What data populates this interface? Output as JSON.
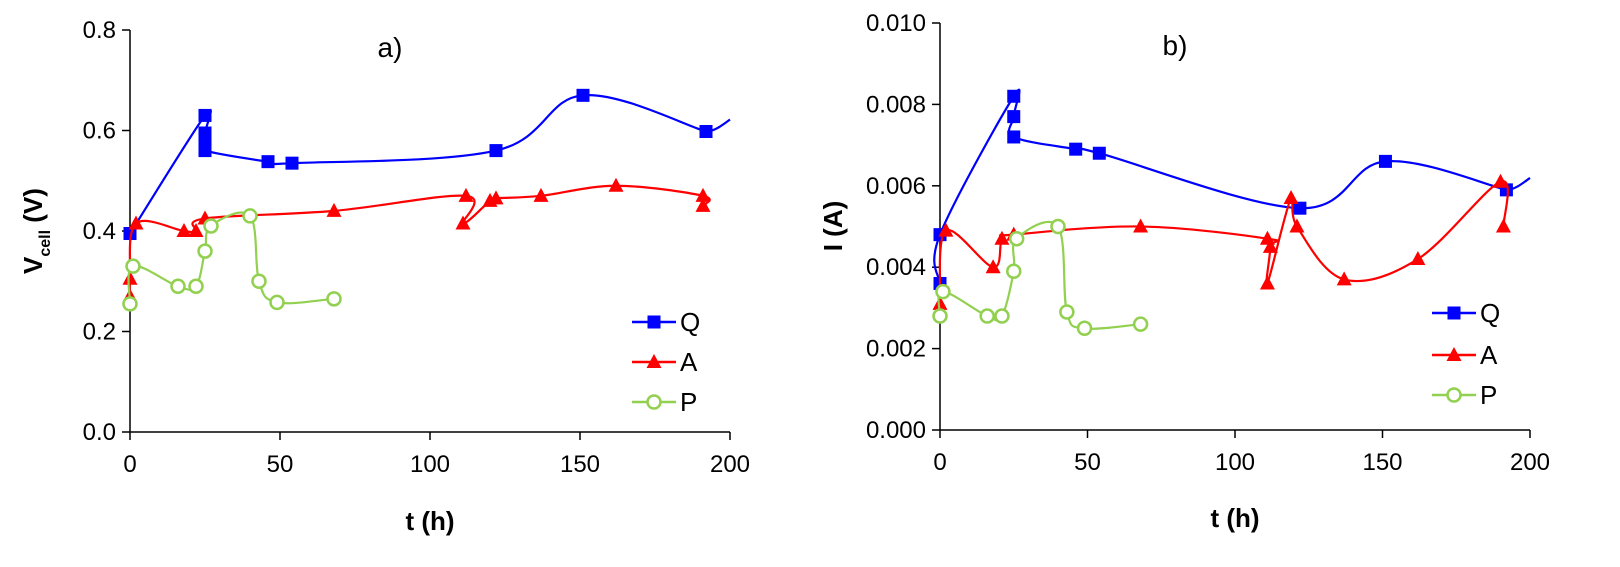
{
  "chart_data": [
    {
      "type": "line",
      "title": "a)",
      "xlabel": "t (h)",
      "ylabel": "V",
      "ylabel_sub": "cell",
      "ylabel_unit": " (V)",
      "xlim": [
        0,
        200
      ],
      "ylim": [
        0,
        0.8
      ],
      "xticks": [
        0,
        50,
        100,
        150,
        200
      ],
      "xtick_labels": [
        "0",
        "50",
        "100",
        "150",
        "200"
      ],
      "yticks": [
        0,
        0.2,
        0.4,
        0.6,
        0.8
      ],
      "ytick_labels": [
        "0.0",
        "0.2",
        "0.4",
        "0.6",
        "0.8"
      ],
      "legend_position": "bottom-right",
      "series": [
        {
          "name": "Q",
          "color": "#0000ff",
          "marker": "square",
          "x": [
            0,
            25,
            25,
            25,
            25,
            46,
            54,
            122,
            151,
            192
          ],
          "y": [
            0.395,
            0.63,
            0.595,
            0.575,
            0.56,
            0.538,
            0.535,
            0.56,
            0.67,
            0.598
          ]
        },
        {
          "name": "A",
          "color": "#ff0000",
          "marker": "triangle",
          "x": [
            0,
            0,
            2,
            18,
            22,
            25,
            68,
            112,
            111,
            120,
            122,
            137,
            162,
            191,
            191
          ],
          "y": [
            0.27,
            0.305,
            0.415,
            0.4,
            0.4,
            0.425,
            0.44,
            0.47,
            0.415,
            0.46,
            0.465,
            0.47,
            0.49,
            0.47,
            0.45
          ]
        },
        {
          "name": "P",
          "color": "#92d050",
          "marker": "circle-open",
          "x": [
            0,
            1,
            16,
            22,
            25,
            27,
            40,
            43,
            49,
            68
          ],
          "y": [
            0.255,
            0.33,
            0.29,
            0.29,
            0.36,
            0.41,
            0.43,
            0.3,
            0.258,
            0.265
          ]
        }
      ]
    },
    {
      "type": "line",
      "title": "b)",
      "xlabel": "t (h)",
      "ylabel": "I (A)",
      "xlim": [
        0,
        200
      ],
      "ylim": [
        0,
        0.01
      ],
      "xticks": [
        0,
        50,
        100,
        150,
        200
      ],
      "xtick_labels": [
        "0",
        "50",
        "100",
        "150",
        "200"
      ],
      "yticks": [
        0,
        0.002,
        0.004,
        0.006,
        0.008,
        0.01
      ],
      "ytick_labels": [
        "0.000",
        "0.002",
        "0.004",
        "0.006",
        "0.008",
        "0.010"
      ],
      "legend_position": "bottom-right",
      "series": [
        {
          "name": "Q",
          "color": "#0000ff",
          "marker": "square",
          "x": [
            0,
            0,
            25,
            25,
            25,
            46,
            54,
            122,
            151,
            192
          ],
          "y": [
            0.0036,
            0.0048,
            0.0082,
            0.0077,
            0.0072,
            0.0069,
            0.0068,
            0.00545,
            0.0066,
            0.0059
          ]
        },
        {
          "name": "A",
          "color": "#ff0000",
          "marker": "triangle",
          "x": [
            0,
            2,
            18,
            21,
            25,
            68,
            111,
            112,
            111,
            119,
            121,
            137,
            162,
            190,
            191
          ],
          "y": [
            0.0031,
            0.0049,
            0.004,
            0.0047,
            0.0048,
            0.005,
            0.0047,
            0.0045,
            0.0036,
            0.0057,
            0.005,
            0.0037,
            0.0042,
            0.0061,
            0.005
          ]
        },
        {
          "name": "P",
          "color": "#92d050",
          "marker": "circle-open",
          "x": [
            0,
            1,
            16,
            21,
            25,
            26,
            40,
            43,
            49,
            68
          ],
          "y": [
            0.0028,
            0.0034,
            0.0028,
            0.0028,
            0.0039,
            0.0047,
            0.005,
            0.0029,
            0.0025,
            0.0026
          ]
        }
      ]
    }
  ]
}
